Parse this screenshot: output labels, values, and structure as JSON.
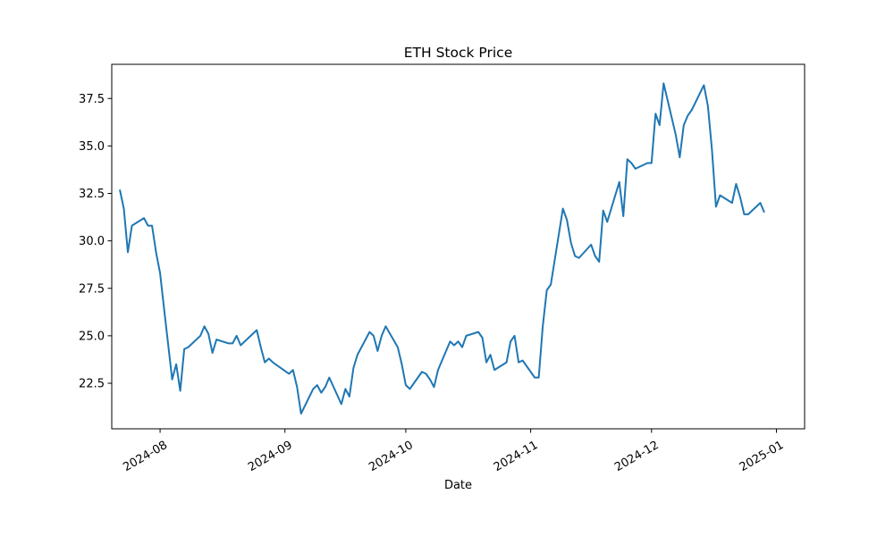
{
  "chart_data": {
    "type": "line",
    "title": "ETH Stock Price",
    "xlabel": "Date",
    "ylabel": "",
    "x_ticks": [
      "2024-08",
      "2024-09",
      "2024-10",
      "2024-11",
      "2024-12",
      "2025-01"
    ],
    "x_tick_dates": [
      "2024-08-01",
      "2024-09-01",
      "2024-10-01",
      "2024-11-01",
      "2024-12-01",
      "2025-01-01"
    ],
    "y_ticks": [
      "22.5",
      "25.0",
      "27.5",
      "30.0",
      "32.5",
      "35.0",
      "37.5"
    ],
    "y_tick_values": [
      22.5,
      25.0,
      27.5,
      30.0,
      32.5,
      35.0,
      37.5
    ],
    "xlim": [
      "2024-07-20",
      "2025-01-08"
    ],
    "ylim": [
      20.1,
      39.3
    ],
    "grid": false,
    "legend": false,
    "line_color": "#1f77b4",
    "series": [
      {
        "x": [
          "2024-07-22",
          "2024-07-23",
          "2024-07-24",
          "2024-07-25",
          "2024-07-28",
          "2024-07-29",
          "2024-07-30",
          "2024-07-31",
          "2024-08-01",
          "2024-08-02",
          "2024-08-04",
          "2024-08-05",
          "2024-08-06",
          "2024-08-07",
          "2024-08-08",
          "2024-08-11",
          "2024-08-12",
          "2024-08-13",
          "2024-08-14",
          "2024-08-15",
          "2024-08-18",
          "2024-08-19",
          "2024-08-20",
          "2024-08-21",
          "2024-08-25",
          "2024-08-26",
          "2024-08-27",
          "2024-08-28",
          "2024-08-29",
          "2024-09-02",
          "2024-09-03",
          "2024-09-04",
          "2024-09-05",
          "2024-09-08",
          "2024-09-09",
          "2024-09-10",
          "2024-09-11",
          "2024-09-12",
          "2024-09-15",
          "2024-09-16",
          "2024-09-17",
          "2024-09-18",
          "2024-09-19",
          "2024-09-22",
          "2024-09-23",
          "2024-09-24",
          "2024-09-25",
          "2024-09-26",
          "2024-09-29",
          "2024-09-30",
          "2024-10-01",
          "2024-10-02",
          "2024-10-05",
          "2024-10-06",
          "2024-10-07",
          "2024-10-08",
          "2024-10-09",
          "2024-10-12",
          "2024-10-13",
          "2024-10-14",
          "2024-10-15",
          "2024-10-16",
          "2024-10-19",
          "2024-10-20",
          "2024-10-21",
          "2024-10-22",
          "2024-10-23",
          "2024-10-26",
          "2024-10-27",
          "2024-10-28",
          "2024-10-29",
          "2024-10-30",
          "2024-11-02",
          "2024-11-03",
          "2024-11-04",
          "2024-11-05",
          "2024-11-06",
          "2024-11-09",
          "2024-11-10",
          "2024-11-11",
          "2024-11-12",
          "2024-11-13",
          "2024-11-16",
          "2024-11-17",
          "2024-11-18",
          "2024-11-19",
          "2024-11-20",
          "2024-11-23",
          "2024-11-24",
          "2024-11-25",
          "2024-11-26",
          "2024-11-27",
          "2024-11-30",
          "2024-12-01",
          "2024-12-02",
          "2024-12-03",
          "2024-12-04",
          "2024-12-07",
          "2024-12-08",
          "2024-12-09",
          "2024-12-10",
          "2024-12-11",
          "2024-12-14",
          "2024-12-15",
          "2024-12-16",
          "2024-12-17",
          "2024-12-18",
          "2024-12-21",
          "2024-12-22",
          "2024-12-23",
          "2024-12-24",
          "2024-12-25",
          "2024-12-28",
          "2024-12-29"
        ],
        "values": [
          32.7,
          31.7,
          29.4,
          30.8,
          31.2,
          30.8,
          30.8,
          29.4,
          28.3,
          26.4,
          22.7,
          23.5,
          22.1,
          24.3,
          24.4,
          25.0,
          25.5,
          25.1,
          24.1,
          24.8,
          24.6,
          24.6,
          25.0,
          24.5,
          25.3,
          24.4,
          23.6,
          23.8,
          23.6,
          23.0,
          23.2,
          22.3,
          20.9,
          22.2,
          22.4,
          22.0,
          22.3,
          22.8,
          21.4,
          22.2,
          21.8,
          23.3,
          24.0,
          25.2,
          25.0,
          24.2,
          25.0,
          25.5,
          24.4,
          23.5,
          22.4,
          22.2,
          23.1,
          23.0,
          22.7,
          22.3,
          23.2,
          24.7,
          24.5,
          24.7,
          24.4,
          25.0,
          25.2,
          24.9,
          23.6,
          24.0,
          23.2,
          23.6,
          24.7,
          25.0,
          23.6,
          23.7,
          22.8,
          22.8,
          25.5,
          27.4,
          27.7,
          31.7,
          31.1,
          29.9,
          29.2,
          29.1,
          29.8,
          29.2,
          28.9,
          31.6,
          31.0,
          33.1,
          31.3,
          34.3,
          34.1,
          33.8,
          34.1,
          34.1,
          36.7,
          36.1,
          38.3,
          35.6,
          34.4,
          36.1,
          36.6,
          36.9,
          38.2,
          37.1,
          34.8,
          31.8,
          32.4,
          32.0,
          33.0,
          32.3,
          31.4,
          31.4,
          32.0,
          31.5
        ]
      }
    ]
  }
}
